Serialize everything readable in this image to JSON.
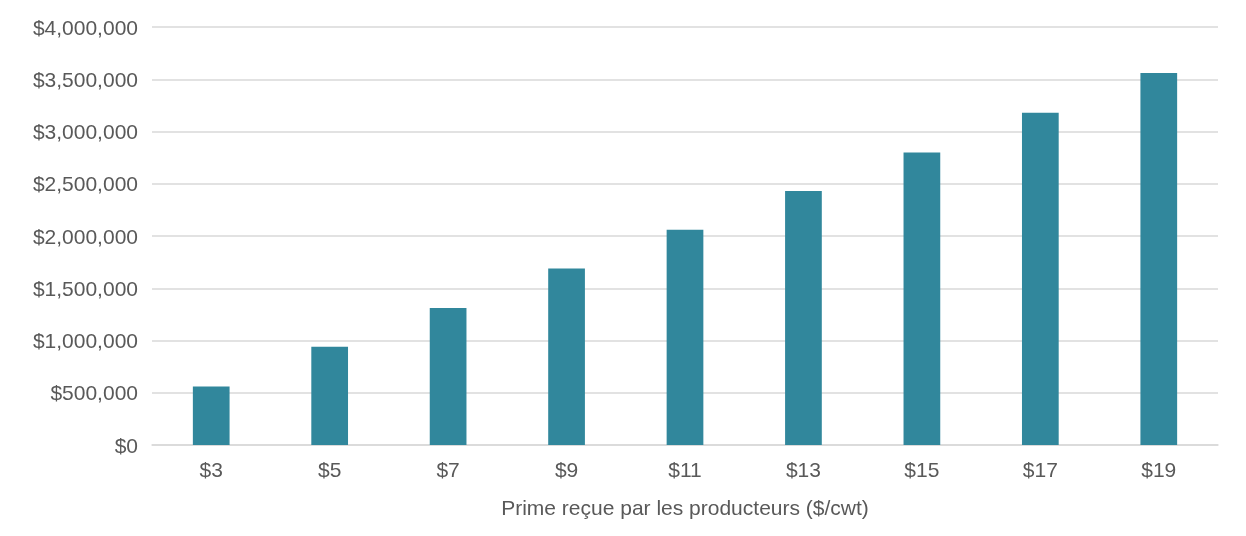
{
  "chart_data": {
    "type": "bar",
    "xlabel": "Prime reçue par les producteurs ($/cwt)",
    "categories": [
      "$3",
      "$5",
      "$7",
      "$9",
      "$11",
      "$13",
      "$15",
      "$17",
      "$19"
    ],
    "values": [
      560000,
      940000,
      1310000,
      1690000,
      2060000,
      2430000,
      2800000,
      3180000,
      3560000
    ],
    "color": "#31879c",
    "ylim": [
      0,
      4000000
    ],
    "yticks": [
      {
        "value": 0,
        "label": "$0"
      },
      {
        "value": 500000,
        "label": "$500,000"
      },
      {
        "value": 1000000,
        "label": "$1,000,000"
      },
      {
        "value": 1500000,
        "label": "$1,500,000"
      },
      {
        "value": 2000000,
        "label": "$2,000,000"
      },
      {
        "value": 2500000,
        "label": "$2,500,000"
      },
      {
        "value": 3000000,
        "label": "$3,000,000"
      },
      {
        "value": 3500000,
        "label": "$3,500,000"
      },
      {
        "value": 4000000,
        "label": "$4,000,000"
      }
    ],
    "grid": "y"
  }
}
